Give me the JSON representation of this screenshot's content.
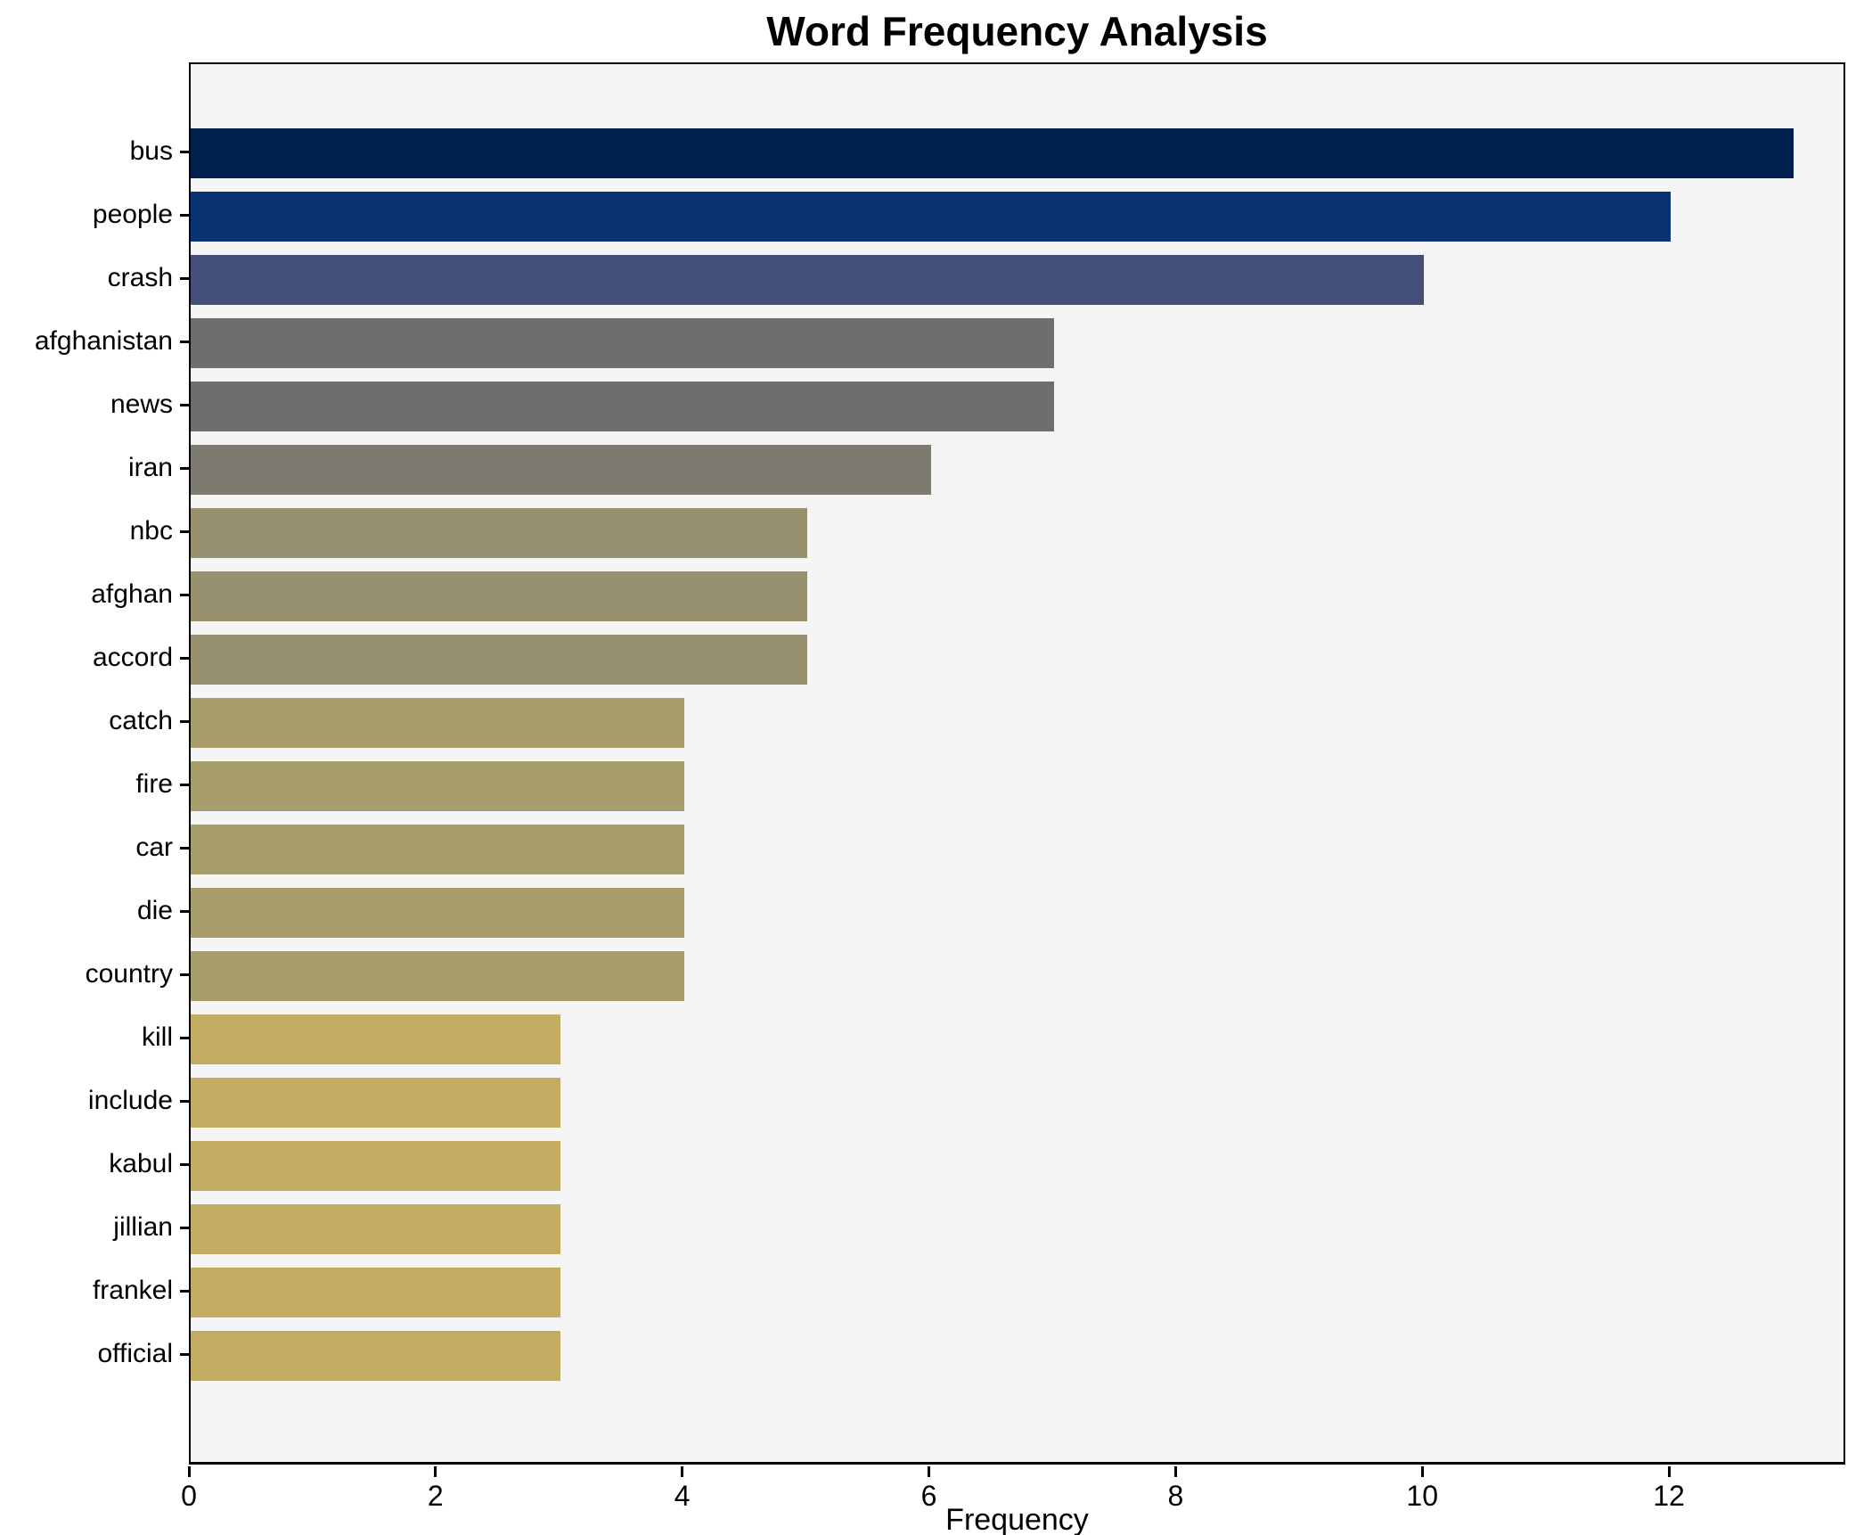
{
  "title": "Word Frequency Analysis",
  "chart_data": {
    "type": "bar",
    "orientation": "horizontal",
    "title": "Word Frequency Analysis",
    "xlabel": "Frequency",
    "ylabel": "",
    "categories": [
      "bus",
      "people",
      "crash",
      "afghanistan",
      "news",
      "iran",
      "nbc",
      "afghan",
      "accord",
      "catch",
      "fire",
      "car",
      "die",
      "country",
      "kill",
      "include",
      "kabul",
      "jillian",
      "frankel",
      "official"
    ],
    "values": [
      13,
      12,
      10,
      7,
      7,
      6,
      5,
      5,
      5,
      4,
      4,
      4,
      4,
      4,
      3,
      3,
      3,
      3,
      3,
      3
    ],
    "bar_colors": [
      "#02204e",
      "#093270",
      "#44507a",
      "#6f6e6e",
      "#6f6e6e",
      "#7d7a71",
      "#97916f",
      "#97916f",
      "#97916f",
      "#a89e6b",
      "#a89e6b",
      "#a89e6b",
      "#a89e6b",
      "#a89e6b",
      "#c1ac62",
      "#c1ac62",
      "#c1ac62",
      "#c1ac62",
      "#c1ac62",
      "#c1ac62"
    ],
    "x_ticks": [
      0,
      2,
      4,
      6,
      8,
      10,
      12
    ],
    "xlim": [
      0,
      13.43
    ],
    "grid": false,
    "legend": null,
    "plot_background": "#f5f5f6",
    "frame_color": "#000000"
  }
}
